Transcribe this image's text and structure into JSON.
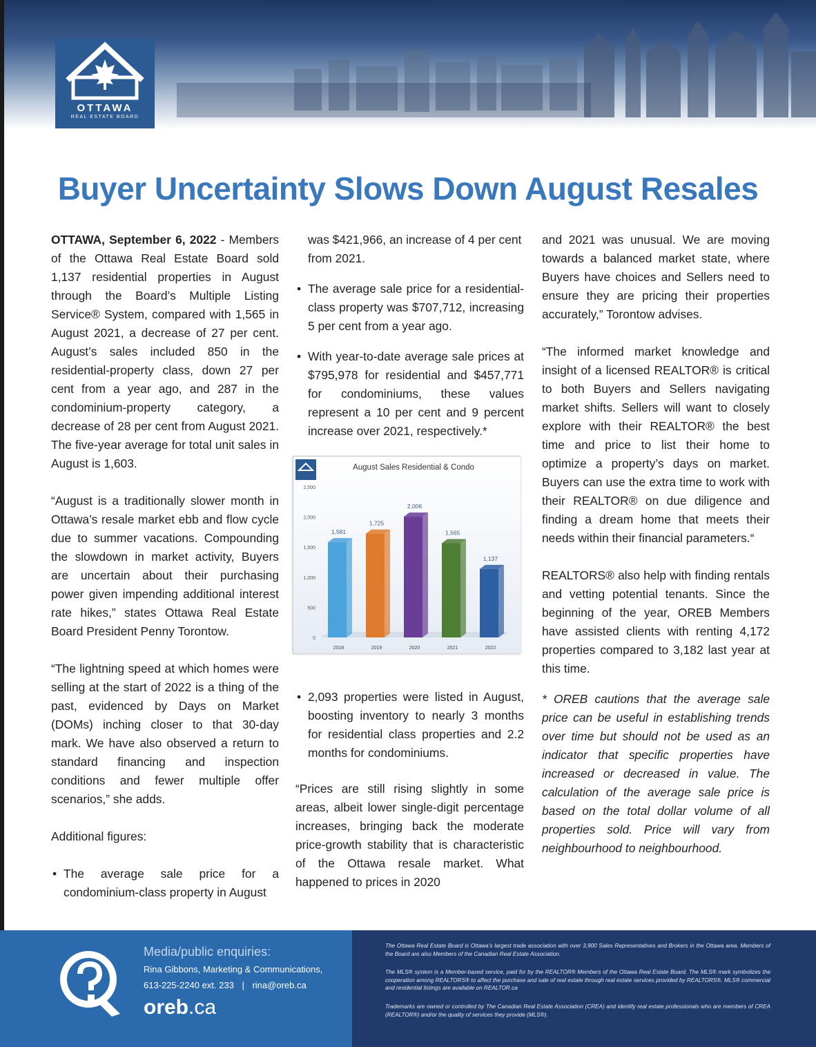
{
  "header": {
    "logo_word": "OTTAWA",
    "logo_sub": "REAL ESTATE BOARD"
  },
  "headline": "Buyer Uncertainty Slows Down August Resales",
  "col1": {
    "dateline": "OTTAWA, September 6, 2022",
    "p1": " - Members of the Ottawa Real Estate Board sold 1,137 residential properties in August through the Board’s Multiple Listing Service® System, compared with 1,565 in August 2021, a decrease of 27 per cent. August’s sales included 850 in the residential-property class, down 27 per cent from a year ago, and 287 in the condominium-property category, a decrease of 28 per cent from August 2021. The five-year average for total unit sales in August is 1,603.",
    "p2": "“August is a traditionally slower month in Ottawa’s resale market ebb and flow cycle due to summer vacations. Compounding the slowdown in market activity, Buyers are uncertain about their purchasing power given impending additional interest rate hikes,” states Ottawa Real Estate Board President Penny Torontow.",
    "p3": "“The lightning speed at which homes were selling at the start of 2022 is a thing of the past, evidenced by Days on Market (DOMs) inching closer to that 30-day mark. We have also observed a return to standard financing and inspection conditions and fewer multiple offer scenarios,” she adds.",
    "p4": "Additional figures:",
    "b1": "The average sale price for a condominium-class property in August"
  },
  "col2": {
    "b1_cont": "was $421,966, an increase of 4 per cent from 2021.",
    "b2": "The average sale price for a residential-class property was $707,712, increasing 5 per cent from a year ago.",
    "b3": "With year-to-date average sale prices at $795,978 for residential and $457,771 for condominiums, these values represent a 10 per cent and 9 percent increase over 2021, respectively.*",
    "b4": "2,093 properties were listed in August, boosting inventory to nearly 3 months for residential class properties and 2.2 months for condominiums.",
    "p5": "“Prices are still rising slightly in some areas, albeit lower single-digit percentage increases, bringing back the moderate price-growth stability that is characteristic of the Ottawa resale market. What happened to prices in 2020"
  },
  "col3": {
    "p5_cont": "and 2021 was unusual. We are moving towards a balanced market state, where Buyers have choices and Sellers need to ensure they are pricing their properties accurately,” Torontow advises.",
    "p6": "“The informed market knowledge and insight of a licensed REALTOR® is critical to both Buyers and Sellers navigating market shifts. Sellers will want to closely explore with their REALTOR® the best time and price to list their home to optimize a property’s days on market. Buyers can use the extra time to work with their REALTOR® on due diligence and finding a dream home that meets their needs within their financial parameters.“",
    "p7": "REALTORS® also help with finding rentals and vetting potential tenants. Since the beginning of the year, OREB Members have assisted clients with renting 4,172 properties compared to 3,182 last year at this time.",
    "p8": "* OREB cautions that the average sale price can be useful in establishing trends over time but should not be used as an indicator that specific properties have increased or decreased in value. The calculation of the average sale price is based on the total dollar volume of all properties sold. Price will vary from neighbourhood to neighbourhood."
  },
  "chart_data": {
    "type": "bar",
    "title": "August Sales Residential & Condo",
    "categories": [
      "2018",
      "2019",
      "2020",
      "2021",
      "2022"
    ],
    "values": [
      1581,
      1725,
      2006,
      1565,
      1137
    ],
    "value_labels": [
      "1,581",
      "1,725",
      "2,006",
      "1,565",
      "1,137"
    ],
    "colors": [
      "#4aa3dc",
      "#e07b2e",
      "#6a3d96",
      "#4e7d34",
      "#2f5fa3"
    ],
    "yticks": [
      "0",
      "500",
      "1,000",
      "1,500",
      "2,000",
      "2,500"
    ],
    "ylim": [
      0,
      2500
    ],
    "xlabel": "",
    "ylabel": "",
    "grid": false
  },
  "footer": {
    "heading": "Media/public enquiries:",
    "contact_name": "Rina Gibbons, Marketing & Communications,",
    "contact_phone": "613-225-2240 ext. 233",
    "separator": "|",
    "contact_email": "rina@oreb.ca",
    "site_main": "oreb",
    "site_tld": ".ca",
    "legal1": "The Ottawa Real Estate Board is Ottawa’s largest trade association with over 3,900 Sales Representatives and Brokers in the Ottawa area. Members of the Board are also Members of the Canadian Real Estate Association.",
    "legal2": "The MLS® system is a Member-based service, paid for by the REALTOR® Members of the Ottawa Real Estate Board. The MLS® mark symbolizes the cooperation among REALTORS® to affect the purchase and sale of real estate through real estate services provided by REALTORS®. MLS® commercial and residential listings are available on REALTOR.ca",
    "legal3": "Trademarks are owned or controlled by The Canadian Real Estate Association (CREA) and identify real estate professionals who are members of CREA (REALTOR®) and/or the quality of services they provide (MLS®)."
  },
  "colors": {
    "headline": "#3a78bd",
    "footer_left": "#2b6aad",
    "footer_right": "#1f3a6b"
  }
}
